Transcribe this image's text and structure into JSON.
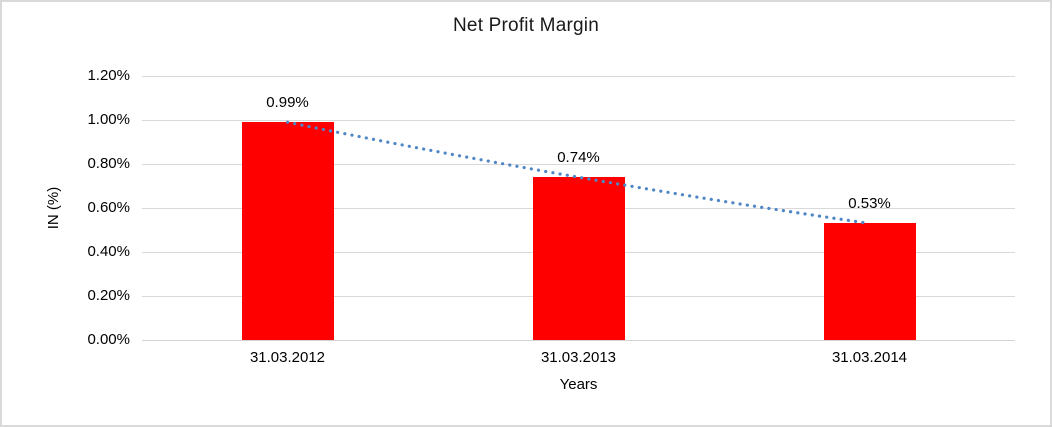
{
  "chart_data": {
    "type": "bar",
    "title": "Net Profit Margin",
    "xlabel": "Years",
    "ylabel": "IN (%)",
    "categories": [
      "31.03.2012",
      "31.03.2013",
      "31.03.2014"
    ],
    "series": [
      {
        "name": "Net Profit Margin",
        "values": [
          0.99,
          0.74,
          0.53
        ]
      }
    ],
    "data_labels": [
      "0.99%",
      "0.74%",
      "0.53%"
    ],
    "y_ticks": [
      "1.20%",
      "1.00%",
      "0.80%",
      "0.60%",
      "0.40%",
      "0.20%",
      "0.00%"
    ],
    "ylim": [
      0,
      1.2
    ],
    "grid": true,
    "legend": "none",
    "bar_color": "#ff0000",
    "trendline_color": "#4f86c6",
    "gridline_color": "#d9d9d9",
    "frame_color": "#d9d9d9"
  }
}
